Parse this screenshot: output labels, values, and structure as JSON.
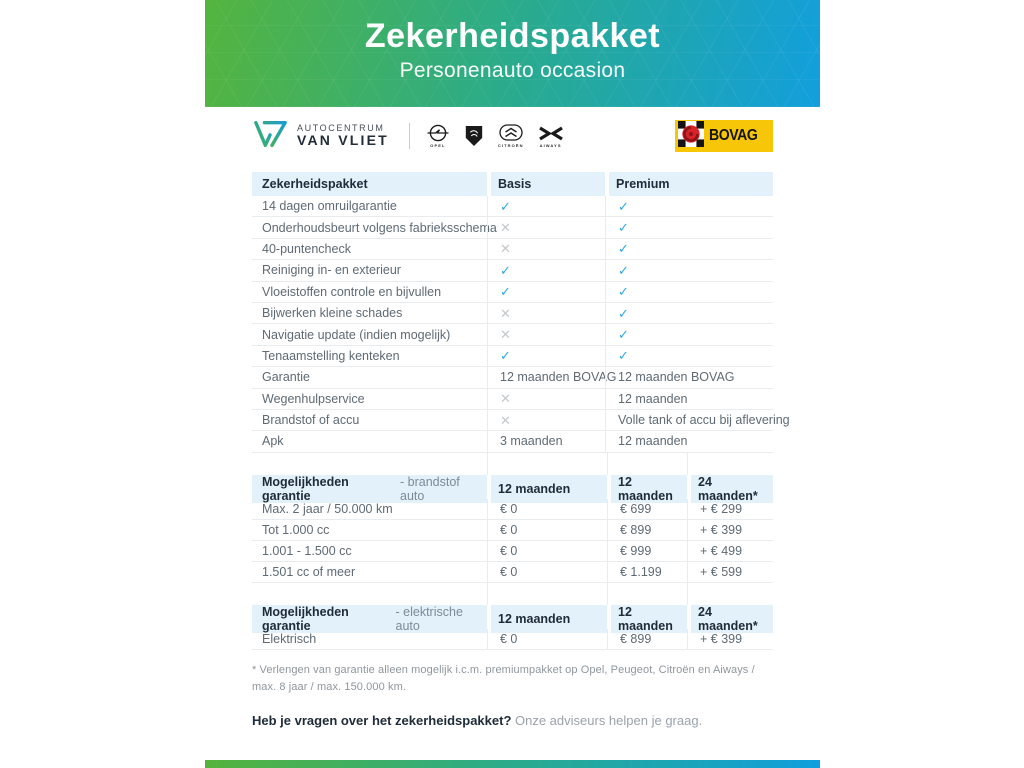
{
  "banner": {
    "title": "Zekerheidspakket",
    "subtitle": "Personenauto occasion"
  },
  "logos": {
    "dealer_top": "AUTOCENTRUM",
    "dealer_bottom": "VAN VLIET",
    "brands": [
      "OPEL",
      "PEUGEOT",
      "CITROËN",
      "AIWAYS"
    ],
    "bovag_label": "BOVAG"
  },
  "comparison_table": {
    "headers": [
      "Zekerheidspakket",
      "Basis",
      "Premium"
    ],
    "rows": [
      {
        "label": "14 dagen omruilgarantie",
        "basis": "check",
        "premium": "check"
      },
      {
        "label": "Onderhoudsbeurt volgens fabrieksschema",
        "basis": "cross",
        "premium": "check"
      },
      {
        "label": "40-puntencheck",
        "basis": "cross",
        "premium": "check"
      },
      {
        "label": "Reiniging in- en exterieur",
        "basis": "check",
        "premium": "check"
      },
      {
        "label": "Vloeistoffen controle en bijvullen",
        "basis": "check",
        "premium": "check"
      },
      {
        "label": "Bijwerken kleine schades",
        "basis": "cross",
        "premium": "check"
      },
      {
        "label": "Navigatie update (indien mogelijk)",
        "basis": "cross",
        "premium": "check"
      },
      {
        "label": "Tenaamstelling kenteken",
        "basis": "check",
        "premium": "check"
      },
      {
        "label": "Garantie",
        "basis": "12 maanden BOVAG",
        "premium": "12 maanden BOVAG"
      },
      {
        "label": "Wegenhulpservice",
        "basis": "cross",
        "premium": "12 maanden"
      },
      {
        "label": "Brandstof of accu",
        "basis": "cross",
        "premium": "Volle tank of accu bij aflevering"
      },
      {
        "label": "Apk",
        "basis": "3 maanden",
        "premium": "12 maanden"
      }
    ]
  },
  "fuel_table": {
    "header_bold": "Mogelijkheden garantie",
    "header_rest": " - brandstof auto",
    "columns": [
      "12 maanden",
      "12 maanden",
      "24 maanden*"
    ],
    "rows": [
      {
        "label": "Max. 2 jaar / 50.000 km",
        "c1": "€ 0",
        "c2": "€ 699",
        "c3": "+ € 299"
      },
      {
        "label": "Tot 1.000 cc",
        "c1": "€ 0",
        "c2": "€ 899",
        "c3": "+ € 399"
      },
      {
        "label": "1.001 - 1.500 cc",
        "c1": "€ 0",
        "c2": "€ 999",
        "c3": "+ € 499"
      },
      {
        "label": "1.501 cc of meer",
        "c1": "€ 0",
        "c2": "€ 1.199",
        "c3": "+ € 599"
      }
    ]
  },
  "electric_table": {
    "header_bold": "Mogelijkheden garantie",
    "header_rest": " - elektrische auto",
    "columns": [
      "12 maanden",
      "12 maanden",
      "24 maanden*"
    ],
    "rows": [
      {
        "label": "Elektrisch",
        "c1": "€ 0",
        "c2": "€ 899",
        "c3": "+ € 399"
      }
    ]
  },
  "footnote": "* Verlengen van garantie alleen mogelijk i.c.m. premiumpakket op Opel, Peugeot, Citroën en Aiways / max. 8 jaar / max. 150.000 km.",
  "cta": {
    "bold": "Heb je vragen over het zekerheidspakket?",
    "rest": " Onze adviseurs helpen je graag."
  },
  "colors": {
    "check": "#29a8e0",
    "cross": "#c3c8cc",
    "header_bg": "#e3f1fa",
    "banner_green": "#54b43e",
    "banner_blue": "#129fdd",
    "bovag_yellow": "#f7c608"
  }
}
